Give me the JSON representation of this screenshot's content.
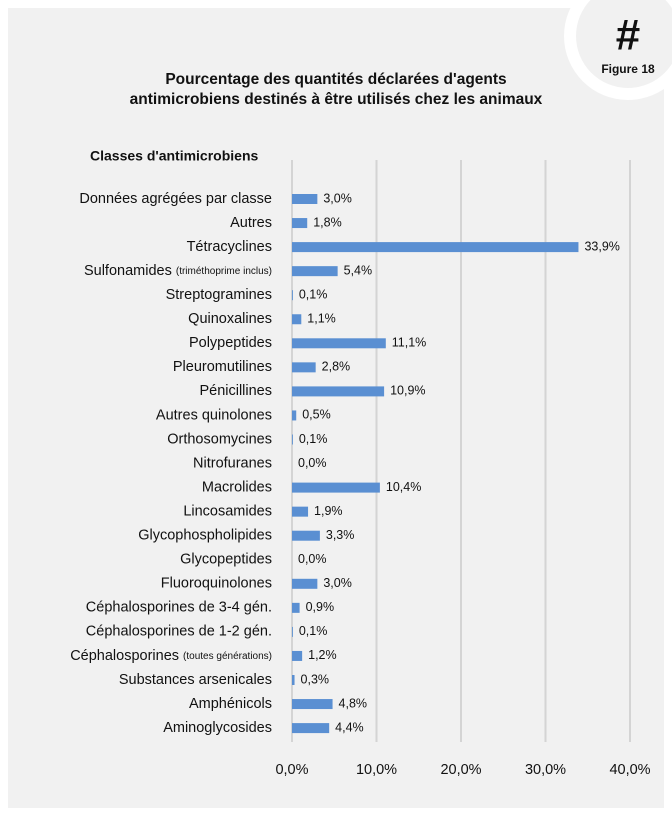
{
  "badge": {
    "symbol": "#",
    "label": "Figure 18"
  },
  "chart_data": {
    "type": "hbar",
    "title": [
      "Pourcentage des quantités déclarées d'agents",
      "antimicrobiens destinés à être utilisés chez les animaux"
    ],
    "y_label": "Classes d'antimicrobiens",
    "categories": [
      "Données agrégées par classe",
      "Autres",
      "Tétracyclines",
      "Sulfonamides (triméthoprime inclus)",
      "Streptogramines",
      "Quinoxalines",
      "Polypeptides",
      "Pleuromutilines",
      "Pénicillines",
      "Autres quinolones",
      "Orthosomycines",
      "Nitrofuranes",
      "Macrolides",
      "Lincosamides",
      "Glycophospholipides",
      "Glycopeptides",
      "Fluoroquinolones",
      "Céphalosporines de 3-4 gén.",
      "Céphalosporines de 1-2 gén.",
      "Céphalosporines (toutes générations)",
      "Substances arsenicales",
      "Amphénicols",
      "Aminoglycosides"
    ],
    "values": [
      3.0,
      1.8,
      33.9,
      5.4,
      0.1,
      1.1,
      11.1,
      2.8,
      10.9,
      0.5,
      0.1,
      0.0,
      10.4,
      1.9,
      3.3,
      0.0,
      3.0,
      0.9,
      0.1,
      1.2,
      0.3,
      4.8,
      4.4
    ],
    "value_labels": [
      "3,0%",
      "1,8%",
      "33,9%",
      "5,4%",
      "0,1%",
      "1,1%",
      "11,1%",
      "2,8%",
      "10,9%",
      "0,5%",
      "0,1%",
      "0,0%",
      "10,4%",
      "1,9%",
      "3,3%",
      "0,0%",
      "3,0%",
      "0,9%",
      "0,1%",
      "1,2%",
      "0,3%",
      "4,8%",
      "4,4%"
    ],
    "color": "#5a8fd2",
    "xlim": [
      0,
      40
    ],
    "xticks": [
      {
        "value": 0,
        "label": "0,0%"
      },
      {
        "value": 10,
        "label": "10,0%"
      },
      {
        "value": 20,
        "label": "20,0%"
      },
      {
        "value": 30,
        "label": "30,0%"
      },
      {
        "value": 40,
        "label": "40,0%"
      }
    ],
    "grid": true
  }
}
